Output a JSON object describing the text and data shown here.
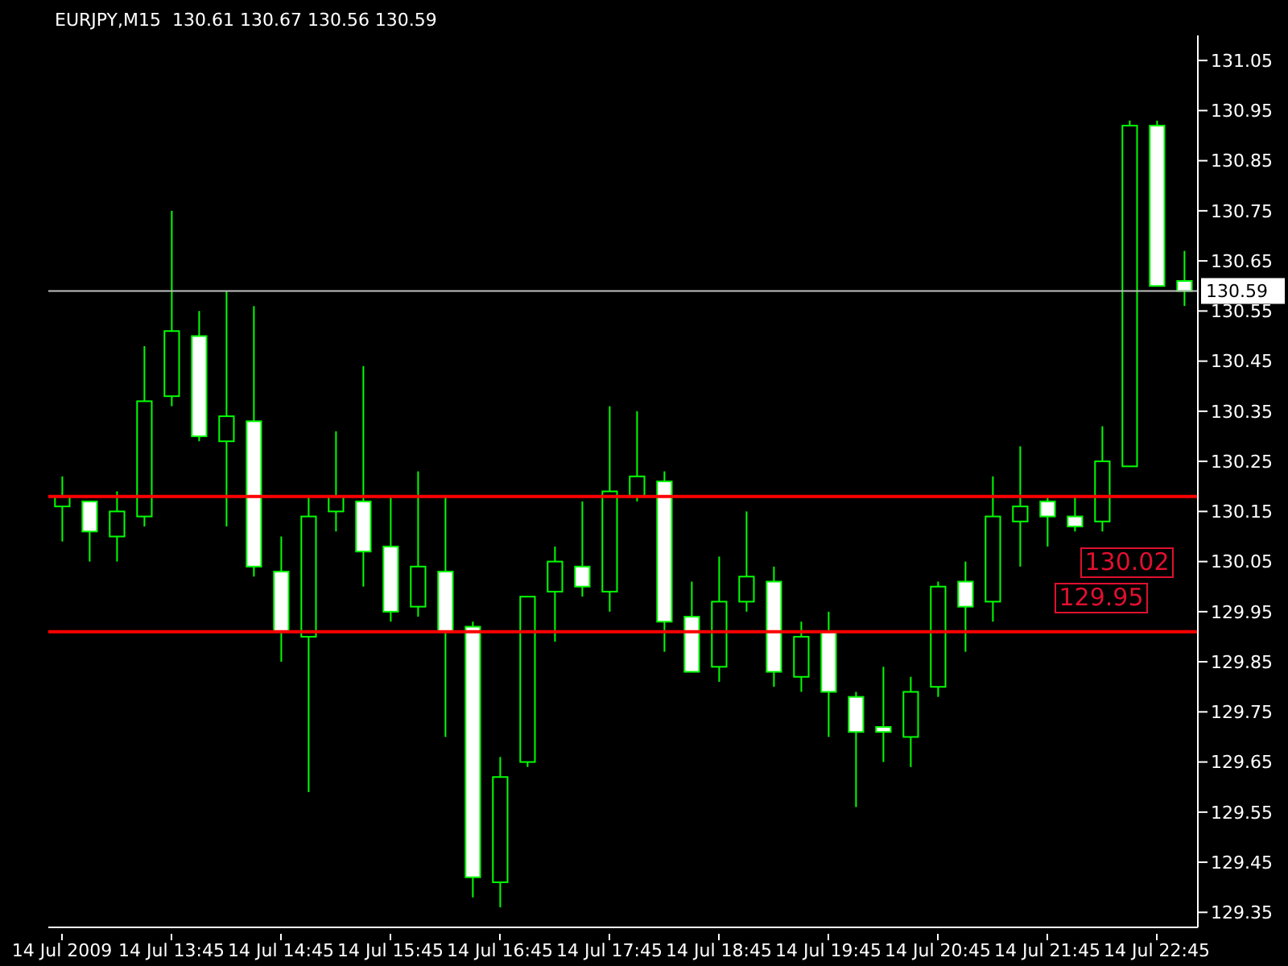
{
  "chart_data": {
    "type": "candlestick",
    "title": "EURJPY,M15  130.61 130.67 130.56 130.59",
    "color": "#00ff00",
    "categories": [
      "14 Jul 2009",
      null,
      null,
      null,
      "14 Jul 13:45",
      null,
      null,
      null,
      "14 Jul 14:45",
      null,
      null,
      null,
      "14 Jul 15:45",
      null,
      null,
      null,
      "14 Jul 16:45",
      null,
      null,
      null,
      "14 Jul 17:45",
      null,
      null,
      null,
      "14 Jul 18:45",
      null,
      null,
      null,
      "14 Jul 19:45",
      null,
      null,
      null,
      "14 Jul 20:45",
      null,
      null,
      null,
      "14 Jul 21:45",
      null,
      null,
      null,
      "14 Jul 22:45",
      null
    ],
    "ohlc": [
      [
        130.16,
        130.22,
        130.09,
        130.18
      ],
      [
        130.17,
        130.17,
        130.05,
        130.11
      ],
      [
        130.1,
        130.19,
        130.05,
        130.15
      ],
      [
        130.14,
        130.48,
        130.12,
        130.37
      ],
      [
        130.38,
        130.75,
        130.36,
        130.51
      ],
      [
        130.5,
        130.55,
        130.29,
        130.3
      ],
      [
        130.29,
        130.59,
        130.12,
        130.34
      ],
      [
        130.33,
        130.56,
        130.02,
        130.04
      ],
      [
        130.03,
        130.1,
        129.85,
        129.91
      ],
      [
        129.9,
        130.18,
        129.59,
        130.14
      ],
      [
        130.15,
        130.31,
        130.11,
        130.18
      ],
      [
        130.17,
        130.44,
        130.0,
        130.07
      ],
      [
        130.08,
        130.18,
        129.93,
        129.95
      ],
      [
        129.96,
        130.23,
        129.94,
        130.04
      ],
      [
        130.03,
        130.18,
        129.7,
        129.91
      ],
      [
        129.92,
        129.93,
        129.38,
        129.42
      ],
      [
        129.41,
        129.66,
        129.36,
        129.62
      ],
      [
        129.65,
        129.98,
        129.64,
        129.98
      ],
      [
        129.99,
        130.08,
        129.89,
        130.05
      ],
      [
        130.04,
        130.17,
        129.98,
        130.0
      ],
      [
        129.99,
        130.36,
        129.95,
        130.19
      ],
      [
        130.18,
        130.35,
        130.17,
        130.22
      ],
      [
        130.21,
        130.23,
        129.87,
        129.93
      ],
      [
        129.94,
        130.01,
        129.83,
        129.83
      ],
      [
        129.84,
        130.06,
        129.81,
        129.97
      ],
      [
        129.97,
        130.15,
        129.95,
        130.02
      ],
      [
        130.01,
        130.04,
        129.8,
        129.83
      ],
      [
        129.82,
        129.93,
        129.79,
        129.9
      ],
      [
        129.91,
        129.95,
        129.7,
        129.79
      ],
      [
        129.78,
        129.79,
        129.56,
        129.71
      ],
      [
        129.72,
        129.84,
        129.65,
        129.71
      ],
      [
        129.7,
        129.82,
        129.64,
        129.79
      ],
      [
        129.8,
        130.01,
        129.78,
        130.0
      ],
      [
        130.01,
        130.05,
        129.87,
        129.96
      ],
      [
        129.97,
        130.22,
        129.93,
        130.14
      ],
      [
        130.13,
        130.28,
        130.04,
        130.16
      ],
      [
        130.17,
        130.18,
        130.08,
        130.14
      ],
      [
        130.14,
        130.18,
        130.11,
        130.12
      ],
      [
        130.13,
        130.32,
        130.11,
        130.25
      ],
      [
        130.24,
        130.93,
        130.24,
        130.92
      ],
      [
        130.92,
        130.93,
        130.6,
        130.6
      ],
      [
        130.61,
        130.67,
        130.56,
        130.59
      ]
    ],
    "ylim": [
      129.32,
      131.1
    ],
    "yticks": [
      129.35,
      129.45,
      129.55,
      129.65,
      129.75,
      129.85,
      129.95,
      130.05,
      130.15,
      130.25,
      130.35,
      130.45,
      130.55,
      130.65,
      130.75,
      130.85,
      130.95,
      131.05
    ],
    "ref_lines": [
      {
        "axis": "y",
        "value": 130.59,
        "label": "130.59",
        "color": "#c0c0c0"
      },
      {
        "axis": "y",
        "value": 130.18,
        "color": "#ff0000"
      },
      {
        "axis": "y",
        "value": 129.91,
        "color": "#ff0000"
      }
    ],
    "annotations": [
      "130.02",
      "129.95"
    ],
    "grid": false,
    "legend": false
  }
}
